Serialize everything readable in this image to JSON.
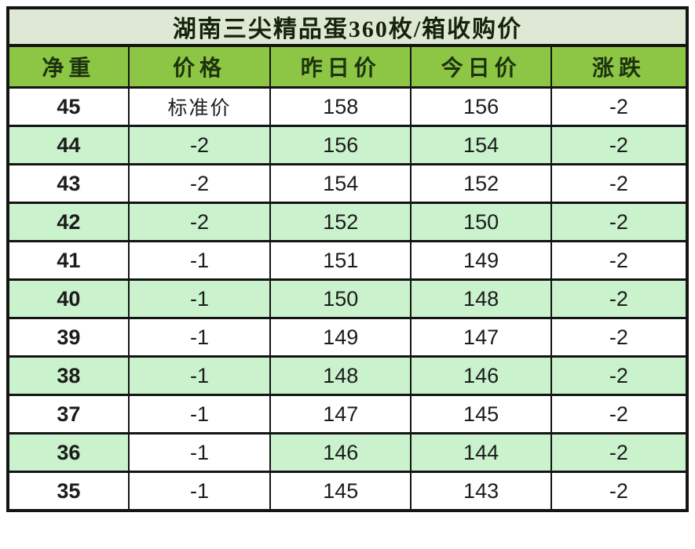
{
  "chart_data": {
    "type": "table",
    "title": "湖南三尖精品蛋360枚/箱收购价",
    "columns": [
      "净重",
      "价格",
      "昨日价",
      "今日价",
      "涨跌"
    ],
    "rows": [
      {
        "values": [
          "45",
          "标准价",
          "158",
          "156",
          "-2"
        ],
        "shaded": false,
        "white_cells": []
      },
      {
        "values": [
          "44",
          "-2",
          "156",
          "154",
          "-2"
        ],
        "shaded": true,
        "white_cells": []
      },
      {
        "values": [
          "43",
          "-2",
          "154",
          "152",
          "-2"
        ],
        "shaded": false,
        "white_cells": []
      },
      {
        "values": [
          "42",
          "-2",
          "152",
          "150",
          "-2"
        ],
        "shaded": true,
        "white_cells": []
      },
      {
        "values": [
          "41",
          "-1",
          "151",
          "149",
          "-2"
        ],
        "shaded": false,
        "white_cells": []
      },
      {
        "values": [
          "40",
          "-1",
          "150",
          "148",
          "-2"
        ],
        "shaded": true,
        "white_cells": []
      },
      {
        "values": [
          "39",
          "-1",
          "149",
          "147",
          "-2"
        ],
        "shaded": false,
        "white_cells": []
      },
      {
        "values": [
          "38",
          "-1",
          "148",
          "146",
          "-2"
        ],
        "shaded": true,
        "white_cells": []
      },
      {
        "values": [
          "37",
          "-1",
          "147",
          "145",
          "-2"
        ],
        "shaded": false,
        "white_cells": []
      },
      {
        "values": [
          "36",
          "-1",
          "146",
          "144",
          "-2"
        ],
        "shaded": true,
        "white_cells": [
          1
        ]
      },
      {
        "values": [
          "35",
          "-1",
          "145",
          "143",
          "-2"
        ],
        "shaded": false,
        "white_cells": []
      }
    ]
  },
  "colors": {
    "header_green": "#8dc544",
    "row_green": "#c9f2cd",
    "title_bg": "#dfe8d4",
    "border": "#141414",
    "title_text": "#15230c",
    "header_text": "#1d3310",
    "cell_text": "#1c1c1c"
  }
}
